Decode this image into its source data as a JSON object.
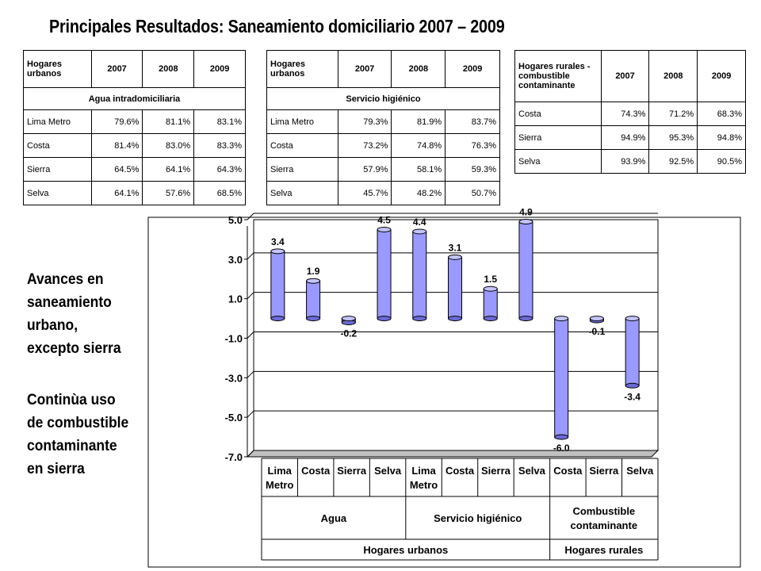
{
  "title": "Principales Resultados: Saneamiento domiciliario 2007 – 2009",
  "table_agua": {
    "head": "Hogares urbanos",
    "years": [
      "2007",
      "2008",
      "2009"
    ],
    "section": "Agua intradomiciliaria",
    "rows": [
      {
        "label": "Lima Metro",
        "v": [
          "79.6%",
          "81.1%",
          "83.1%"
        ]
      },
      {
        "label": "Costa",
        "v": [
          "81.4%",
          "83.0%",
          "83.3%"
        ]
      },
      {
        "label": "Sierra",
        "v": [
          "64.5%",
          "64.1%",
          "64.3%"
        ]
      },
      {
        "label": "Selva",
        "v": [
          "64.1%",
          "57.6%",
          "68.5%"
        ]
      }
    ]
  },
  "table_higienico": {
    "head": "Hogares urbanos",
    "years": [
      "2007",
      "2008",
      "2009"
    ],
    "section": "Servicio higiénico",
    "rows": [
      {
        "label": "Lima Metro",
        "v": [
          "79.3%",
          "81.9%",
          "83.7%"
        ]
      },
      {
        "label": "Costa",
        "v": [
          "73.2%",
          "74.8%",
          "76.3%"
        ]
      },
      {
        "label": "Sierra",
        "v": [
          "57.9%",
          "58.1%",
          "59.3%"
        ]
      },
      {
        "label": "Selva",
        "v": [
          "45.7%",
          "48.2%",
          "50.7%"
        ]
      }
    ]
  },
  "table_rurales": {
    "head": "Hogares rurales - combustible contaminante",
    "years": [
      "2007",
      "2008",
      "2009"
    ],
    "rows": [
      {
        "label": "Costa",
        "v": [
          "74.3%",
          "71.2%",
          "68.3%"
        ]
      },
      {
        "label": "Sierra",
        "v": [
          "94.9%",
          "95.3%",
          "94.8%"
        ]
      },
      {
        "label": "Selva",
        "v": [
          "93.9%",
          "92.5%",
          "90.5%"
        ]
      }
    ]
  },
  "side_notes": {
    "note1": [
      "Avances en",
      "saneamiento",
      "urbano,",
      "excepto sierra"
    ],
    "note2": [
      "Continùa uso",
      "de combustible",
      "contaminante",
      "en  sierra"
    ]
  },
  "chart_data": {
    "type": "bar",
    "title": "",
    "xlabel": "",
    "ylabel": "",
    "ylim": [
      -7.0,
      5.0
    ],
    "yticks": [
      "5.0",
      "3.0",
      "1.0",
      "-1.0",
      "-3.0",
      "-5.0",
      "-7.0"
    ],
    "grid": true,
    "bar_color": "#9999ff",
    "categories": [
      [
        "Lima",
        "Metro"
      ],
      [
        "Costa"
      ],
      [
        "Sierra"
      ],
      [
        "Selva"
      ],
      [
        "Lima",
        "Metro"
      ],
      [
        "Costa"
      ],
      [
        "Sierra"
      ],
      [
        "Selva"
      ],
      [
        "Costa"
      ],
      [
        "Sierra"
      ],
      [
        "Selva"
      ]
    ],
    "values": [
      3.4,
      1.9,
      -0.2,
      4.5,
      4.4,
      3.1,
      1.5,
      4.9,
      -6.0,
      -0.1,
      -3.4
    ],
    "value_labels": [
      "3.4",
      "1.9",
      "-0.2",
      "4.5",
      "4.4",
      "3.1",
      "1.5",
      "4.9",
      "-6.0",
      "-0.1",
      "-3.4"
    ],
    "groups": [
      {
        "label": [
          "Agua"
        ],
        "count": 4
      },
      {
        "label": [
          "Servicio higiénico"
        ],
        "count": 4
      },
      {
        "label": [
          "Combustible",
          "contaminante"
        ],
        "count": 3
      }
    ],
    "supergroups": [
      {
        "label": "Hogares urbanos",
        "count": 8
      },
      {
        "label": "Hogares rurales",
        "count": 3
      }
    ]
  }
}
